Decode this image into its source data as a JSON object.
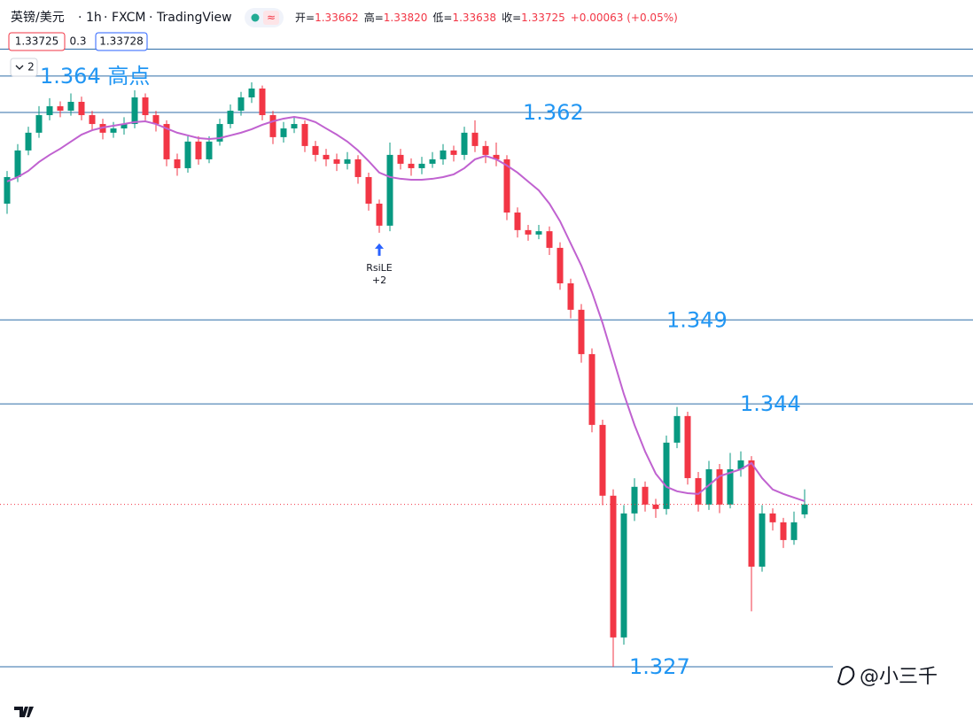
{
  "chart_data": {
    "type": "candlestick",
    "header": {
      "symbol": "英镑/美元",
      "interval": "1h",
      "source": "FXCM",
      "platform": "TradingView",
      "status_icon": "≈"
    },
    "ohlc_legend": [
      "开=1.33662",
      "高=1.33820",
      "低=1.33638",
      "收=1.33725",
      "+0.00063 (+0.05%)"
    ],
    "badges": [
      "1.33725",
      "0.3",
      "1.33728"
    ],
    "indicator_count": "2",
    "up_color": "#089981",
    "down_color": "#f23645",
    "ylim": [
      1.3237,
      1.3691
    ],
    "open": [
      1.35624,
      1.35792,
      1.3596,
      1.36072,
      1.36183,
      1.36239,
      1.36211,
      1.36267,
      1.36183,
      1.36127,
      1.36072,
      1.36099,
      1.36127,
      1.36295,
      1.36183,
      1.36127,
      1.35904,
      1.35848,
      1.36016,
      1.35904,
      1.36016,
      1.36127,
      1.36211,
      1.36295,
      1.36351,
      1.36183,
      1.36044,
      1.36099,
      1.36127,
      1.35988,
      1.35932,
      1.35904,
      1.35876,
      1.35904,
      1.35792,
      1.35624,
      1.35485,
      1.35932,
      1.35876,
      1.35848,
      1.35876,
      1.35904,
      1.3596,
      1.35932,
      1.36072,
      1.35988,
      1.35932,
      1.35904,
      1.35568,
      1.35457,
      1.35429,
      1.3545,
      1.35345,
      1.35121,
      1.34954,
      1.34674,
      1.34227,
      1.3378,
      1.32885,
      1.33668,
      1.33836,
      1.33724,
      1.33696,
      1.34115,
      1.34283,
      1.33891,
      1.33724,
      1.33947,
      1.33724,
      1.33947,
      1.34003,
      1.33332,
      1.33668,
      1.33612,
      1.335,
      1.33662
    ],
    "high": [
      1.3583,
      1.36,
      1.3611,
      1.3624,
      1.3629,
      1.3627,
      1.3632,
      1.363,
      1.3621,
      1.3616,
      1.3614,
      1.3617,
      1.3634,
      1.3632,
      1.3621,
      1.3615,
      1.3594,
      1.3605,
      1.3605,
      1.3605,
      1.3616,
      1.3625,
      1.3633,
      1.3639,
      1.3637,
      1.3621,
      1.3614,
      1.3617,
      1.3615,
      1.3602,
      1.3597,
      1.3594,
      1.3595,
      1.3593,
      1.3582,
      1.3565,
      1.3601,
      1.3597,
      1.3591,
      1.3592,
      1.3595,
      1.36,
      1.3599,
      1.3611,
      1.3615,
      1.3602,
      1.3601,
      1.3593,
      1.356,
      1.3549,
      1.3549,
      1.3548,
      1.3538,
      1.3515,
      1.3499,
      1.3471,
      1.3426,
      1.3382,
      1.3372,
      1.3389,
      1.3387,
      1.3376,
      1.3416,
      1.3434,
      1.3431,
      1.3393,
      1.34,
      1.3398,
      1.3405,
      1.3406,
      1.3403,
      1.3372,
      1.337,
      1.3364,
      1.3368,
      1.3382
    ],
    "low": [
      1.3556,
      1.3576,
      1.3593,
      1.3604,
      1.3615,
      1.3617,
      1.3618,
      1.3615,
      1.3609,
      1.3603,
      1.3604,
      1.3606,
      1.361,
      1.3615,
      1.3608,
      1.3586,
      1.358,
      1.3582,
      1.3587,
      1.3588,
      1.3599,
      1.361,
      1.3618,
      1.3626,
      1.3615,
      1.36,
      1.3601,
      1.3607,
      1.3595,
      1.3589,
      1.3586,
      1.3583,
      1.3584,
      1.3575,
      1.3558,
      1.3544,
      1.3545,
      1.3584,
      1.358,
      1.3581,
      1.3585,
      1.3587,
      1.3589,
      1.359,
      1.3595,
      1.3588,
      1.3586,
      1.3552,
      1.3541,
      1.3539,
      1.354,
      1.353,
      1.3508,
      1.349,
      1.3462,
      1.3418,
      1.3372,
      1.327,
      1.3284,
      1.3362,
      1.3368,
      1.3364,
      1.3366,
      1.3408,
      1.3385,
      1.3368,
      1.3369,
      1.3367,
      1.337,
      1.339,
      1.3305,
      1.333,
      1.3356,
      1.3345,
      1.3347,
      1.33638
    ],
    "close": [
      1.35792,
      1.3596,
      1.36072,
      1.36183,
      1.36239,
      1.36211,
      1.36267,
      1.36183,
      1.36127,
      1.36072,
      1.36099,
      1.36127,
      1.36295,
      1.36183,
      1.36127,
      1.35904,
      1.35848,
      1.36016,
      1.35904,
      1.36016,
      1.36127,
      1.36211,
      1.36295,
      1.36351,
      1.36183,
      1.36044,
      1.36099,
      1.36127,
      1.35988,
      1.35932,
      1.35904,
      1.35876,
      1.35904,
      1.35792,
      1.35624,
      1.35485,
      1.35932,
      1.35876,
      1.35848,
      1.35876,
      1.35904,
      1.3596,
      1.35932,
      1.36072,
      1.35988,
      1.35932,
      1.35904,
      1.35568,
      1.35457,
      1.35429,
      1.3545,
      1.35345,
      1.35121,
      1.34954,
      1.34674,
      1.34227,
      1.3378,
      1.32885,
      1.33668,
      1.33836,
      1.33724,
      1.33696,
      1.34115,
      1.34283,
      1.33891,
      1.33724,
      1.33947,
      1.33724,
      1.33947,
      1.34003,
      1.33332,
      1.33668,
      1.33612,
      1.335,
      1.33612,
      1.33725
    ],
    "moving_average": {
      "color": "#c062d0",
      "values": [
        1.35764,
        1.35792,
        1.35831,
        1.35887,
        1.35932,
        1.35971,
        1.36016,
        1.3606,
        1.36088,
        1.36105,
        1.36116,
        1.36127,
        1.36139,
        1.36144,
        1.36127,
        1.36099,
        1.36072,
        1.36055,
        1.36038,
        1.36032,
        1.36038,
        1.36055,
        1.36072,
        1.36094,
        1.36122,
        1.36144,
        1.36161,
        1.36172,
        1.36161,
        1.36139,
        1.36099,
        1.3606,
        1.36016,
        1.3596,
        1.35893,
        1.3582,
        1.35792,
        1.35781,
        1.35775,
        1.35775,
        1.35781,
        1.35792,
        1.35809,
        1.35848,
        1.35904,
        1.35926,
        1.35904,
        1.35865,
        1.3582,
        1.35764,
        1.35708,
        1.35624,
        1.35513,
        1.35373,
        1.35233,
        1.35065,
        1.3487,
        1.34646,
        1.34422,
        1.34227,
        1.34059,
        1.33919,
        1.33836,
        1.33808,
        1.33796,
        1.33791,
        1.33847,
        1.33903,
        1.33925,
        1.33947,
        1.33986,
        1.33891,
        1.33819,
        1.33791,
        1.33768,
        1.33746
      ]
    },
    "level_color": "#2f6ea8",
    "label_color": "#2196f3",
    "levels": [
      {
        "value": 1.366
      },
      {
        "value": 1.3643,
        "label": "1.364 高点"
      },
      {
        "value": 1.362,
        "label": "1.362"
      },
      {
        "value": 1.3489,
        "label": "1.349"
      },
      {
        "value": 1.3436,
        "label": "1.344"
      },
      {
        "value": 1.327,
        "label": "1.327"
      }
    ],
    "signal": {
      "text": "RsiLE",
      "quantity": "+2"
    },
    "watermark": "@小三千"
  }
}
